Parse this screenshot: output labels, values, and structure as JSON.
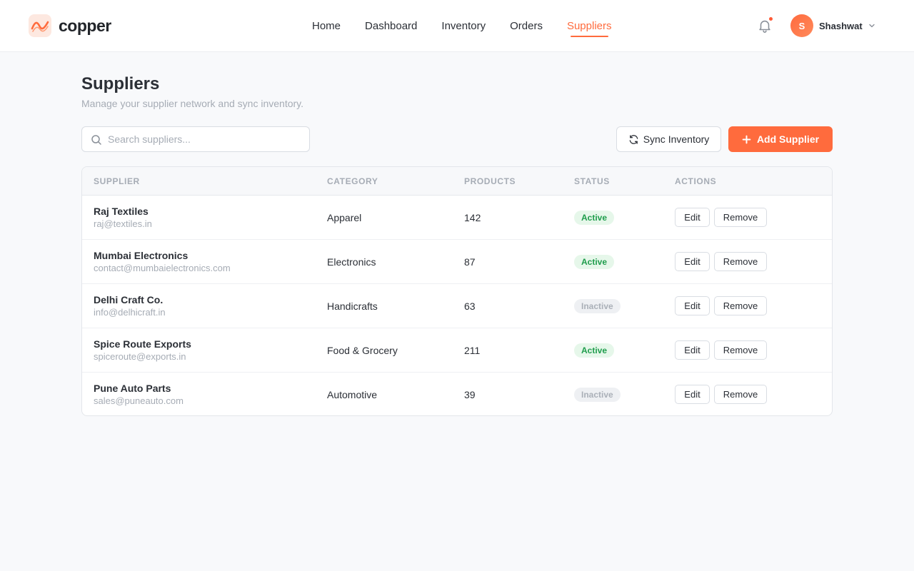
{
  "brand": {
    "name": "copper"
  },
  "nav": {
    "items": [
      {
        "label": "Home",
        "active": false
      },
      {
        "label": "Dashboard",
        "active": false
      },
      {
        "label": "Inventory",
        "active": false
      },
      {
        "label": "Orders",
        "active": false
      },
      {
        "label": "Suppliers",
        "active": true
      }
    ]
  },
  "header": {
    "notifications_icon": "bell-icon",
    "has_unread": true,
    "user": {
      "initial": "S",
      "name": "Shashwat"
    }
  },
  "page": {
    "title": "Suppliers",
    "subtitle": "Manage your supplier network and sync inventory."
  },
  "toolbar": {
    "search_placeholder": "Search suppliers...",
    "search_value": "",
    "sync_label": "Sync Inventory",
    "add_label": "Add Supplier"
  },
  "table": {
    "columns": [
      "Supplier",
      "Category",
      "Products",
      "Status",
      "Actions"
    ],
    "rows": [
      {
        "name": "Raj Textiles",
        "email": "raj@textiles.in",
        "category": "Apparel",
        "products": "142",
        "status": "Active",
        "edit": "Edit",
        "remove": "Remove"
      },
      {
        "name": "Mumbai Electronics",
        "email": "contact@mumbaielectronics.com",
        "category": "Electronics",
        "products": "87",
        "status": "Active",
        "edit": "Edit",
        "remove": "Remove"
      },
      {
        "name": "Delhi Craft Co.",
        "email": "info@delhicraft.in",
        "category": "Handicrafts",
        "products": "63",
        "status": "Inactive",
        "edit": "Edit",
        "remove": "Remove"
      },
      {
        "name": "Spice Route Exports",
        "email": "spiceroute@exports.in",
        "category": "Food & Grocery",
        "products": "211",
        "status": "Active",
        "edit": "Edit",
        "remove": "Remove"
      },
      {
        "name": "Pune Auto Parts",
        "email": "sales@puneauto.com",
        "category": "Automotive",
        "products": "39",
        "status": "Inactive",
        "edit": "Edit",
        "remove": "Remove"
      }
    ]
  },
  "colors": {
    "accent": "#ff6b3d",
    "active_badge_bg": "#e6f7ea",
    "active_badge_text": "#1f9d4c",
    "inactive_badge_bg": "#eef0f3",
    "inactive_badge_text": "#aab0b8"
  }
}
